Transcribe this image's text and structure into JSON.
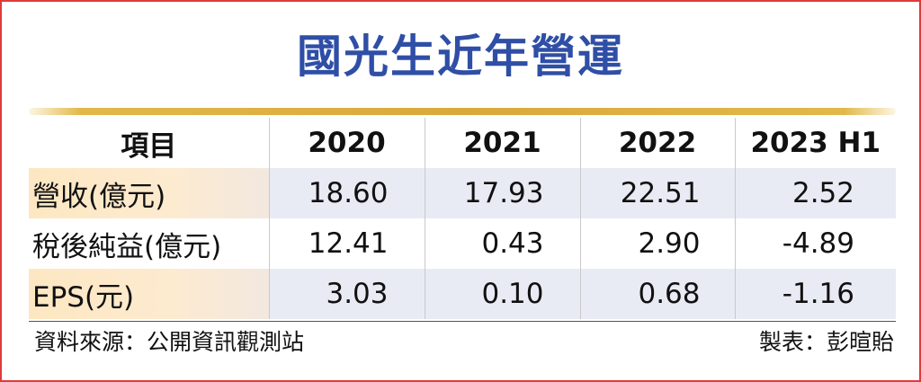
{
  "title": "國光生近年營運",
  "table": {
    "headers": [
      "項目",
      "2020",
      "2021",
      "2022",
      "2023 H1"
    ],
    "rows": [
      {
        "label": "營收(億元)",
        "values": [
          "18.60",
          "17.93",
          "22.51",
          "2.52"
        ]
      },
      {
        "label": "稅後純益(億元)",
        "values": [
          "12.41",
          "0.43",
          "2.90",
          "-4.89"
        ]
      },
      {
        "label": "EPS(元)",
        "values": [
          "3.03",
          "0.10",
          "0.68",
          "-1.16"
        ]
      }
    ]
  },
  "footer": {
    "source": "資料來源：公開資訊觀測站",
    "maker": "製表：彭暄貽"
  },
  "colors": {
    "title": "#2f4ea6",
    "border": "#e03a3a",
    "gold": "#d9a93a",
    "row_shade": "#e9ebf4",
    "label_shade": "#fde7c2"
  }
}
